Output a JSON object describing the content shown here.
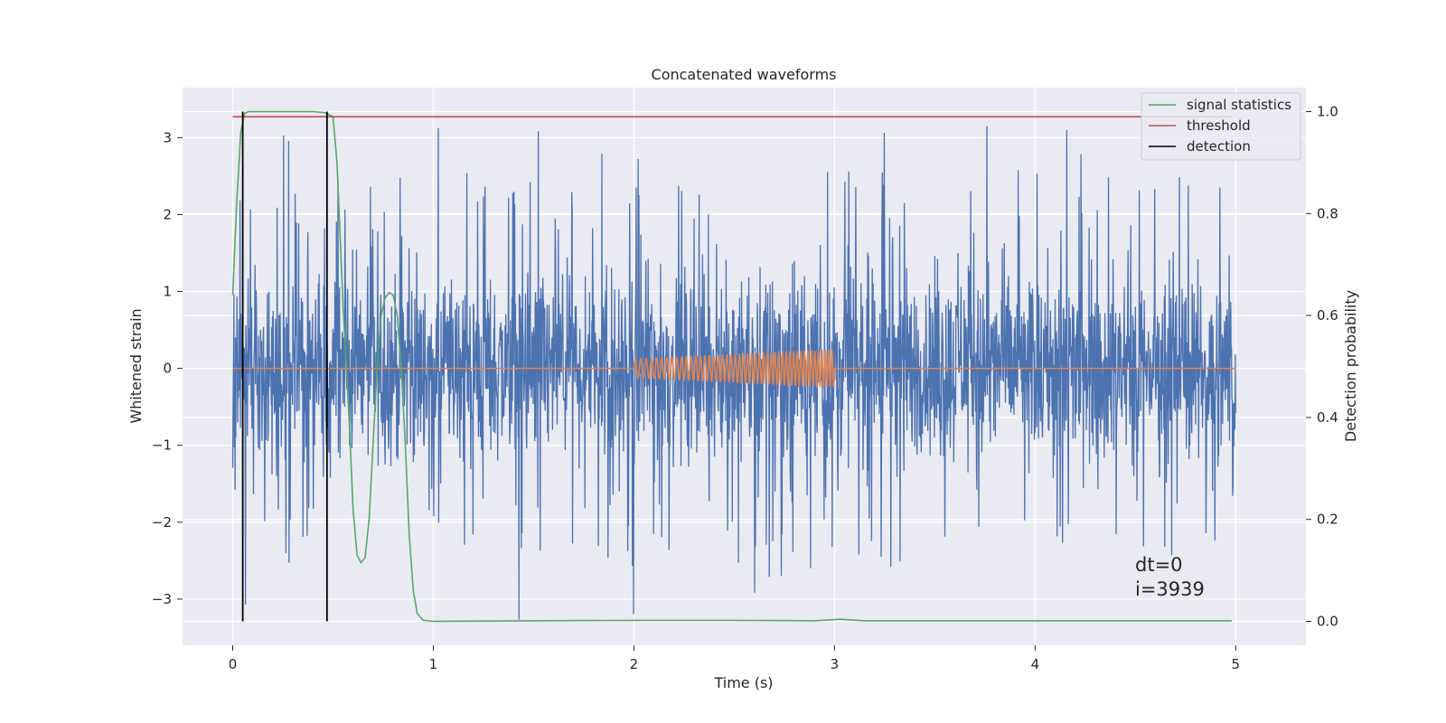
{
  "chart_data": {
    "type": "line",
    "title": "Concatenated waveforms",
    "xlabel": "Time (s)",
    "ylabel": "Whitened strain",
    "y2label": "Detection probability",
    "xlim": [
      -0.25,
      5.35
    ],
    "ylim": [
      -3.6,
      3.65
    ],
    "y2lim": [
      -0.047,
      1.047
    ],
    "x_ticks": [
      0,
      1,
      2,
      3,
      4,
      5
    ],
    "y_ticks": [
      -3,
      -2,
      -1,
      0,
      1,
      2,
      3
    ],
    "y2_ticks": [
      0.0,
      0.2,
      0.4,
      0.6,
      0.8,
      1.0
    ],
    "x_tick_labels": [
      "0",
      "1",
      "2",
      "3",
      "4",
      "5"
    ],
    "y_tick_labels": [
      "−3",
      "−2",
      "−1",
      "0",
      "1",
      "2",
      "3"
    ],
    "y2_tick_labels": [
      "0.0",
      "0.2",
      "0.4",
      "0.6",
      "0.8",
      "1.0"
    ],
    "grid": true,
    "legend_position": "top-right",
    "legend": [
      {
        "label": "signal statistics",
        "color": "#55a868"
      },
      {
        "label": "threshold",
        "color": "#c44e52"
      },
      {
        "label": "detection",
        "color": "#000000"
      }
    ],
    "noise": {
      "color": "#4c72b0",
      "x_range": [
        0,
        5
      ],
      "typical_band": [
        -0.7,
        0.7
      ],
      "spike_range": [
        -3.3,
        3.3
      ]
    },
    "injected_signal": {
      "color": "#dd8452",
      "x_range": [
        0,
        5
      ],
      "chirp_range": [
        2.0,
        3.0
      ],
      "amplitude_start": 0.12,
      "amplitude_end": 0.24
    },
    "signal_statistics": {
      "axis": "right",
      "x": [
        0,
        0.02,
        0.04,
        0.06,
        0.08,
        0.1,
        0.2,
        0.3,
        0.4,
        0.46,
        0.5,
        0.52,
        0.55,
        0.58,
        0.6,
        0.62,
        0.64,
        0.66,
        0.68,
        0.7,
        0.72,
        0.74,
        0.76,
        0.78,
        0.8,
        0.82,
        0.84,
        0.86,
        0.88,
        0.9,
        0.92,
        0.95,
        1.0,
        1.5,
        2.0,
        2.5,
        2.9,
        3.03,
        3.15,
        3.5,
        3.8,
        4.0,
        4.5,
        4.98
      ],
      "y": [
        0.64,
        0.82,
        0.96,
        0.997,
        1.0,
        1.0,
        1.0,
        1.0,
        1.0,
        0.998,
        0.99,
        0.9,
        0.62,
        0.4,
        0.22,
        0.13,
        0.115,
        0.125,
        0.2,
        0.35,
        0.5,
        0.6,
        0.635,
        0.645,
        0.64,
        0.6,
        0.5,
        0.35,
        0.17,
        0.06,
        0.015,
        0.002,
        0.0,
        0.001,
        0.002,
        0.002,
        0.001,
        0.004,
        0.001,
        0.001,
        0.001,
        0.001,
        0.001,
        0.001
      ]
    },
    "threshold": {
      "axis": "right",
      "value": 0.99,
      "x_range": [
        0,
        4.98
      ]
    },
    "detections": [
      0.05,
      0.47
    ],
    "annotations": [
      "dt=0",
      "i=3939"
    ]
  }
}
